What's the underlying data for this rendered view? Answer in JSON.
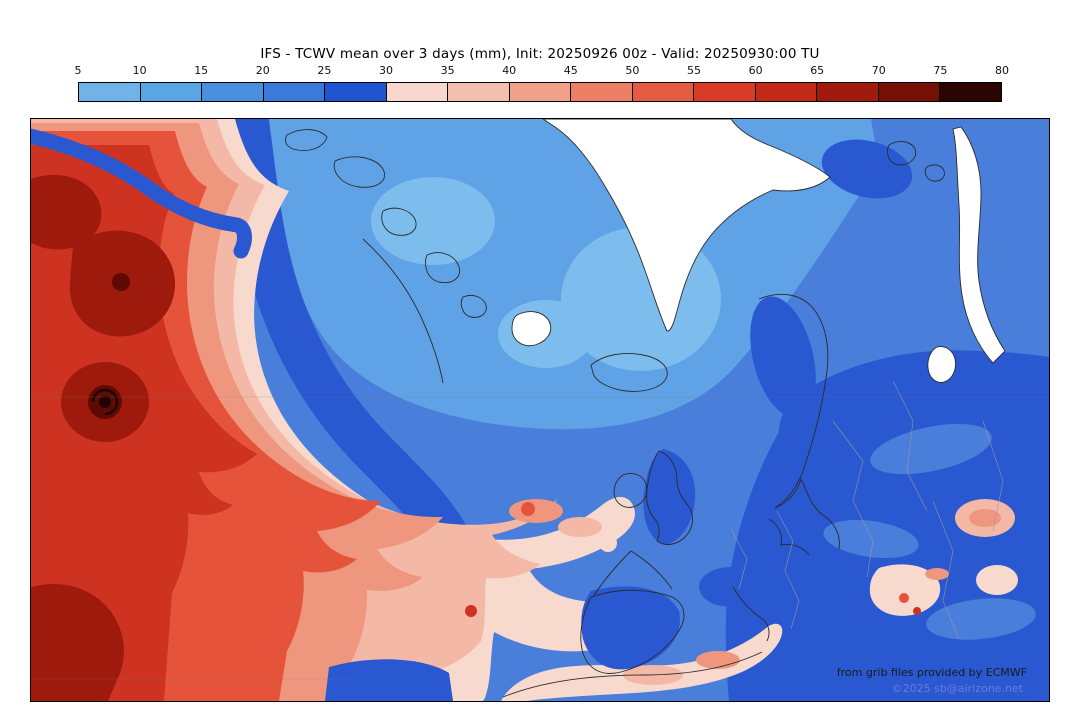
{
  "header": {
    "title": "IFS - TCWV mean over 3 days (mm), Init: 20250926 00z - Valid: 20250930:00 TU"
  },
  "colorbar": {
    "unit": "mm",
    "min": 5,
    "max": 80,
    "step": 5,
    "ticks": [
      "5",
      "10",
      "15",
      "20",
      "25",
      "30",
      "35",
      "40",
      "45",
      "50",
      "55",
      "60",
      "65",
      "70",
      "75",
      "80"
    ],
    "segment_colors": [
      "#6fb3e9",
      "#5aa5e4",
      "#498fdf",
      "#3b79da",
      "#1f55d0",
      "#f8d8ce",
      "#f5bfae",
      "#f1a18c",
      "#ec7f66",
      "#e55b42",
      "#d93b27",
      "#c22a17",
      "#a01b0c",
      "#741005",
      "#2c0402"
    ]
  },
  "map": {
    "attribution_line1": "from grib files provided by ECMWF",
    "attribution_line2": "©2025 sb@airizone.net"
  },
  "palette": {
    "blue_lightest": "#7cbdee",
    "blue_light": "#5fa3e6",
    "blue_mid": "#4a7edb",
    "blue_deep": "#2a58d0",
    "pink_light": "#f8d9ce",
    "pink": "#f4b9a6",
    "salmon": "#ef977e",
    "red": "#e5543a",
    "red_deep": "#cd3320",
    "red_dark": "#9e1a0c",
    "red_vdark": "#5f0b04",
    "near_black": "#200301",
    "ice_white": "#ffffff",
    "coast": "#2b2b2b",
    "border_gray": "#9b9b9b"
  },
  "chart_data": {
    "type": "heatmap",
    "title": "IFS - TCWV mean over 3 days (mm), Init: 20250926 00z - Valid: 20250930:00 TU",
    "variable": "Total Column Water Vapour (TCWV), 3-day mean",
    "units": "mm",
    "scale_ticks": [
      5,
      10,
      15,
      20,
      25,
      30,
      35,
      40,
      45,
      50,
      55,
      60,
      65,
      70,
      75,
      80
    ],
    "legend_position": "top",
    "regions": [
      {
        "area": "western/central North Atlantic plume (left of map)",
        "value_range_mm": "45-75"
      },
      {
        "area": "storm vortex core in west Atlantic",
        "value_range_mm": "75-80"
      },
      {
        "area": "secondary dark-red core north of vortex",
        "value_range_mm": "65-75"
      },
      {
        "area": "pale-pink fringe of plume and Mediterranean tongue along Africa coast",
        "value_range_mm": "30-45"
      },
      {
        "area": "Greenland ice sheet and Novaya Zemlya",
        "value_range_mm": "below scale (white)"
      },
      {
        "area": "Arctic seas around Greenland and Iceland",
        "value_range_mm": "10-20"
      },
      {
        "area": "British Isles, Scandinavia, central Europe",
        "value_range_mm": "20-30"
      },
      {
        "area": "eastern Europe / Russia deep-blue zone",
        "value_range_mm": "25-30"
      },
      {
        "area": "Black Sea / Aegean warm patches (bottom right)",
        "value_range_mm": "30-45"
      }
    ]
  }
}
